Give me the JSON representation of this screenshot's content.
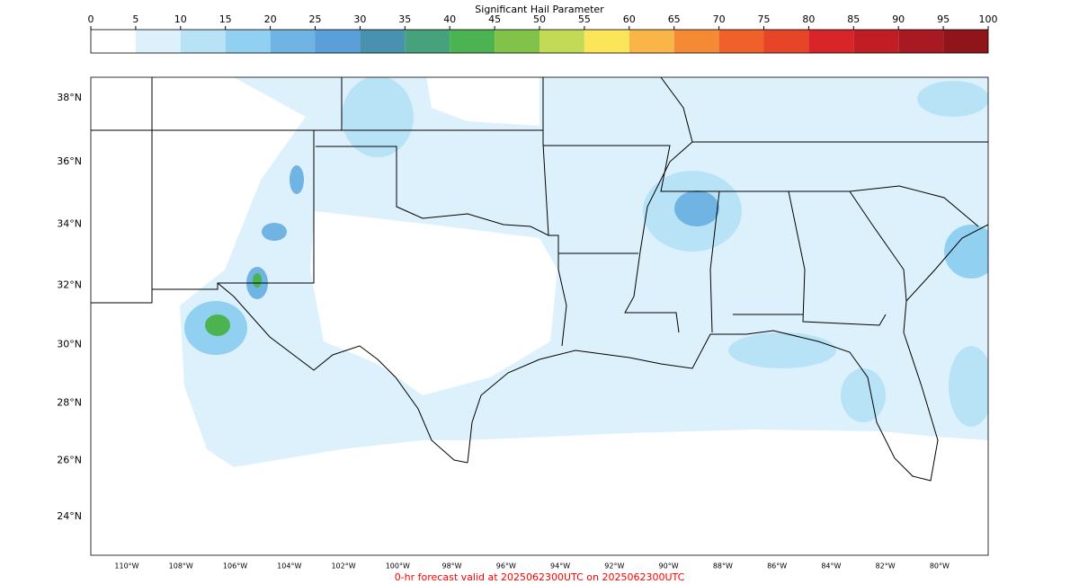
{
  "colorbar": {
    "title": "Significant Hail Parameter",
    "ticks": [
      0,
      5,
      10,
      15,
      20,
      25,
      30,
      35,
      40,
      45,
      50,
      55,
      60,
      65,
      70,
      75,
      80,
      85,
      90,
      95,
      100
    ],
    "colors": [
      "#ffffff",
      "#ddf1fc",
      "#b8e3f7",
      "#92d0f2",
      "#6fb4e2",
      "#5a9fd8",
      "#4892b0",
      "#46a27c",
      "#4bb34f",
      "#82c24a",
      "#c2da56",
      "#fbe65a",
      "#f9b647",
      "#f58a34",
      "#f0602a",
      "#e64528",
      "#d82529",
      "#c01d24",
      "#a81a22",
      "#8f151b"
    ]
  },
  "map": {
    "lat_labels": [
      {
        "value": 38,
        "label": "38°N"
      },
      {
        "value": 36,
        "label": "36°N"
      },
      {
        "value": 34,
        "label": "34°N"
      },
      {
        "value": 32,
        "label": "32°N"
      },
      {
        "value": 30,
        "label": "30°N"
      },
      {
        "value": 28,
        "label": "28°N"
      },
      {
        "value": 26,
        "label": "26°N"
      },
      {
        "value": 24,
        "label": "24°N"
      }
    ],
    "lon_labels": [
      {
        "value": -110,
        "label": "110°W"
      },
      {
        "value": -108,
        "label": "108°W"
      },
      {
        "value": -106,
        "label": "106°W"
      },
      {
        "value": -104,
        "label": "104°W"
      },
      {
        "value": -102,
        "label": "102°W"
      },
      {
        "value": -100,
        "label": "100°W"
      },
      {
        "value": -98,
        "label": "98°W"
      },
      {
        "value": -96,
        "label": "96°W"
      },
      {
        "value": -94,
        "label": "94°W"
      },
      {
        "value": -92,
        "label": "92°W"
      },
      {
        "value": -90,
        "label": "90°W"
      },
      {
        "value": -88,
        "label": "88°W"
      },
      {
        "value": -86,
        "label": "86°W"
      },
      {
        "value": -84,
        "label": "84°W"
      },
      {
        "value": -82,
        "label": "82°W"
      },
      {
        "value": -80,
        "label": "80°W"
      }
    ]
  },
  "footer": "0-hr forecast valid at 2025062300UTC on 2025062300UTC"
}
